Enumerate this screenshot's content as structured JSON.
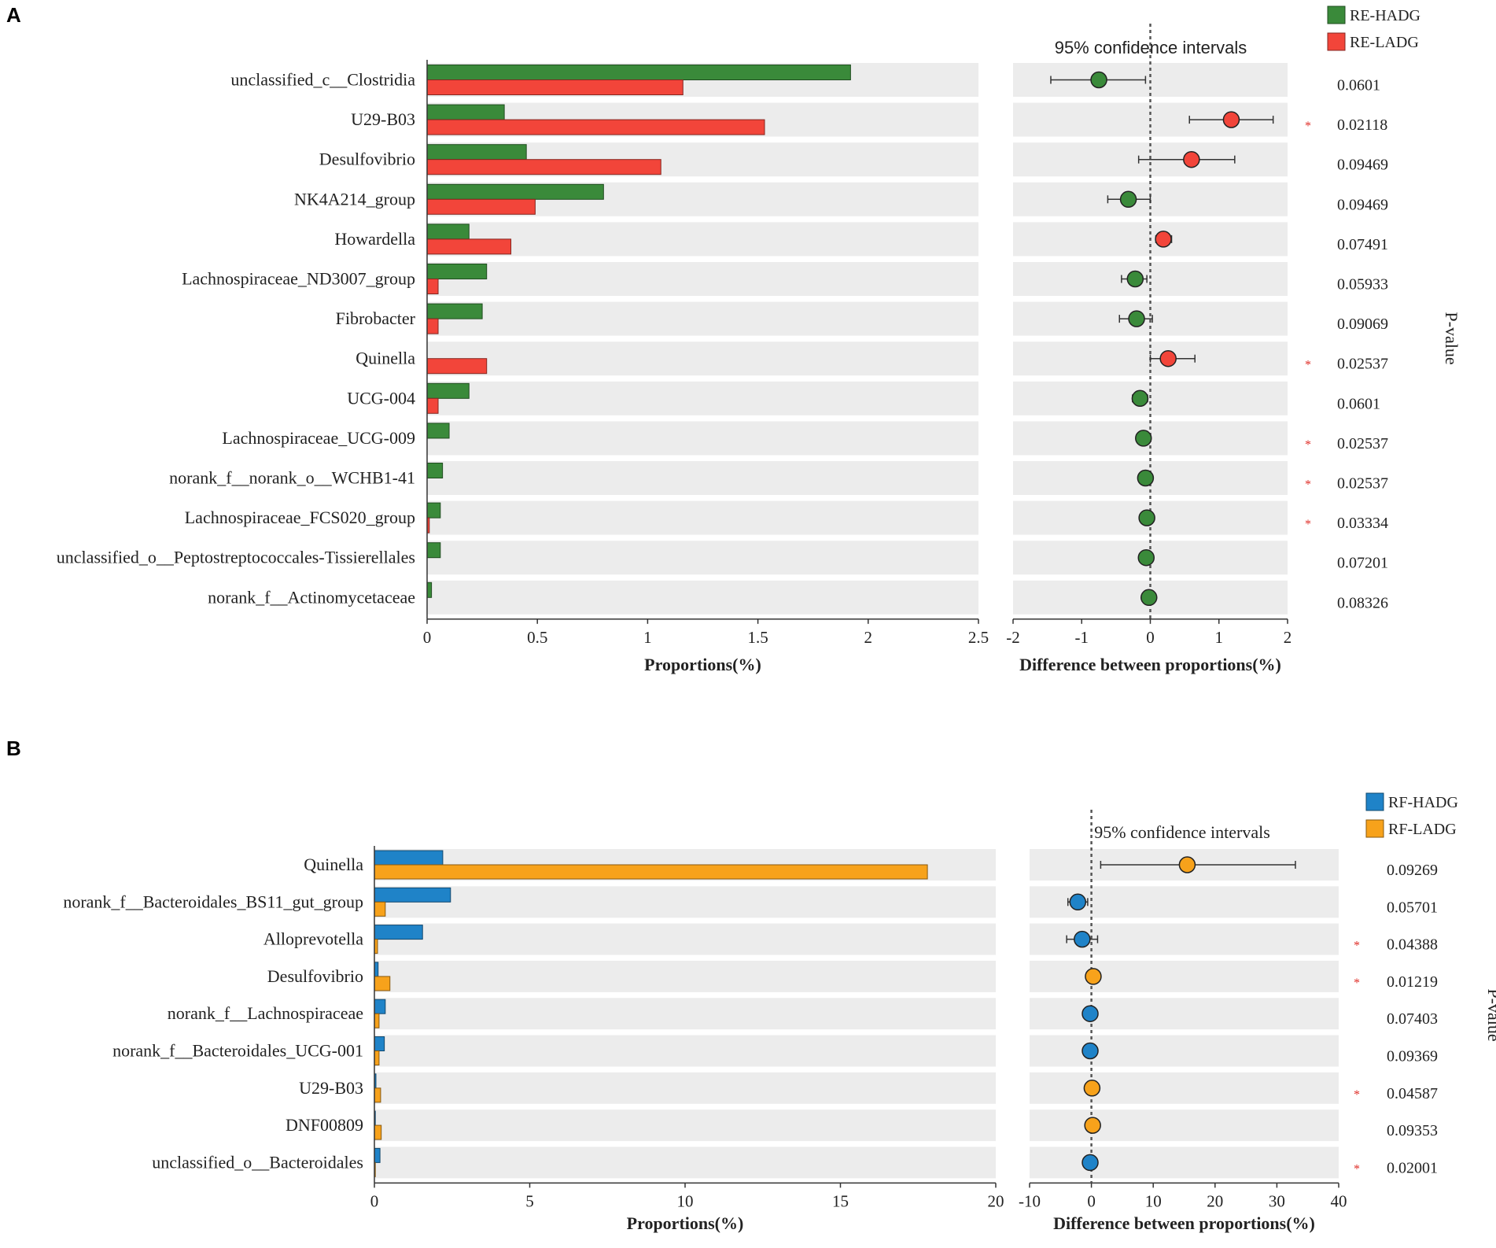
{
  "chart_data": [
    {
      "panel": "A",
      "type": "bar",
      "legend": [
        {
          "name": "RE-HADG",
          "color": "#3a8a3a"
        },
        {
          "name": "RE-LADG",
          "color": "#f2453a"
        }
      ],
      "categories": [
        "unclassified_c__Clostridia",
        "U29-B03",
        "Desulfovibrio",
        "NK4A214_group",
        "Howardella",
        "Lachnospiraceae_ND3007_group",
        "Fibrobacter",
        "Quinella",
        "UCG-004",
        "Lachnospiraceae_UCG-009",
        "norank_f__norank_o__WCHB1-41",
        "Lachnospiraceae_FCS020_group",
        "unclassified_o__Peptostreptococcales-Tissierellales",
        "norank_f__Actinomycetaceae"
      ],
      "series": [
        {
          "name": "RE-HADG",
          "values": [
            1.92,
            0.35,
            0.45,
            0.8,
            0.19,
            0.27,
            0.25,
            0.0,
            0.19,
            0.1,
            0.07,
            0.06,
            0.06,
            0.02
          ]
        },
        {
          "name": "RE-LADG",
          "values": [
            1.16,
            1.53,
            1.06,
            0.49,
            0.38,
            0.05,
            0.05,
            0.27,
            0.05,
            0.0,
            0.0,
            0.01,
            0.0,
            0.0
          ]
        }
      ],
      "xlabel": "Proportions(%)",
      "xlim": [
        0,
        2.5
      ],
      "xticks": [
        "0",
        "0.5",
        "1",
        "1.5",
        "2",
        "2.5"
      ],
      "difference": {
        "title": "95% confidence intervals",
        "xlabel": "Difference between proportions(%)",
        "xlim": [
          -2,
          2
        ],
        "xticks": [
          "-2",
          "-1",
          "0",
          "1",
          "2"
        ],
        "estimates": [
          -0.75,
          1.18,
          0.6,
          -0.32,
          0.19,
          -0.22,
          -0.2,
          0.26,
          -0.15,
          -0.1,
          -0.07,
          -0.05,
          -0.06,
          -0.02
        ],
        "ci_low": [
          -1.45,
          0.57,
          -0.17,
          -0.62,
          0.08,
          -0.42,
          -0.45,
          0.0,
          -0.26,
          -0.13,
          -0.09,
          -0.07,
          -0.08,
          -0.03
        ],
        "ci_high": [
          -0.07,
          1.79,
          1.23,
          0.0,
          0.31,
          -0.05,
          0.03,
          0.65,
          -0.04,
          -0.07,
          -0.05,
          -0.03,
          -0.04,
          -0.01
        ]
      },
      "p_label": "P-value",
      "p_values": [
        "0.0601",
        "0.02118",
        "0.09469",
        "0.09469",
        "0.07491",
        "0.05933",
        "0.09069",
        "0.02537",
        "0.0601",
        "0.02537",
        "0.02537",
        "0.03334",
        "0.07201",
        "0.08326"
      ],
      "significant": [
        false,
        true,
        false,
        false,
        false,
        false,
        false,
        true,
        false,
        true,
        true,
        true,
        false,
        false
      ],
      "star_symbol": "*"
    },
    {
      "panel": "B",
      "type": "bar",
      "legend": [
        {
          "name": "RF-HADG",
          "color": "#1f83c8"
        },
        {
          "name": "RF-LADG",
          "color": "#f7a21b"
        }
      ],
      "categories": [
        "Quinella",
        "norank_f__Bacteroidales_BS11_gut_group",
        "Alloprevotella",
        "Desulfovibrio",
        "norank_f__Lachnospiraceae",
        "norank_f__Bacteroidales_UCG-001",
        "U29-B03",
        "DNF00809",
        "unclassified_o__Bacteroidales"
      ],
      "series": [
        {
          "name": "RF-HADG",
          "values": [
            2.2,
            2.45,
            1.55,
            0.12,
            0.35,
            0.32,
            0.05,
            0.03,
            0.18
          ]
        },
        {
          "name": "RF-LADG",
          "values": [
            17.8,
            0.35,
            0.1,
            0.5,
            0.15,
            0.15,
            0.2,
            0.22,
            0.03
          ]
        }
      ],
      "xlabel": "Proportions(%)",
      "xlim": [
        0,
        20
      ],
      "xticks": [
        "0",
        "5",
        "10",
        "15",
        "20"
      ],
      "difference": {
        "title": "95% confidence intervals",
        "xlabel": "Difference between proportions(%)",
        "xlim": [
          -10,
          40
        ],
        "xticks": [
          "-10",
          "0",
          "10",
          "20",
          "30",
          "40"
        ],
        "estimates": [
          15.5,
          -2.2,
          -1.5,
          0.3,
          -0.2,
          -0.2,
          0.1,
          0.2,
          -0.2
        ],
        "ci_low": [
          1.5,
          -3.8,
          -4.0,
          0.0,
          -0.5,
          -0.5,
          0.0,
          0.0,
          -0.4
        ],
        "ci_high": [
          33.0,
          -0.6,
          1.0,
          0.6,
          0.1,
          0.1,
          0.2,
          0.4,
          0.0
        ]
      },
      "p_label": "P-value",
      "p_values": [
        "0.09269",
        "0.05701",
        "0.04388",
        "0.01219",
        "0.07403",
        "0.09369",
        "0.04587",
        "0.09353",
        "0.02001"
      ],
      "significant": [
        false,
        false,
        true,
        true,
        false,
        false,
        true,
        false,
        true
      ],
      "star_symbol": "*"
    }
  ]
}
